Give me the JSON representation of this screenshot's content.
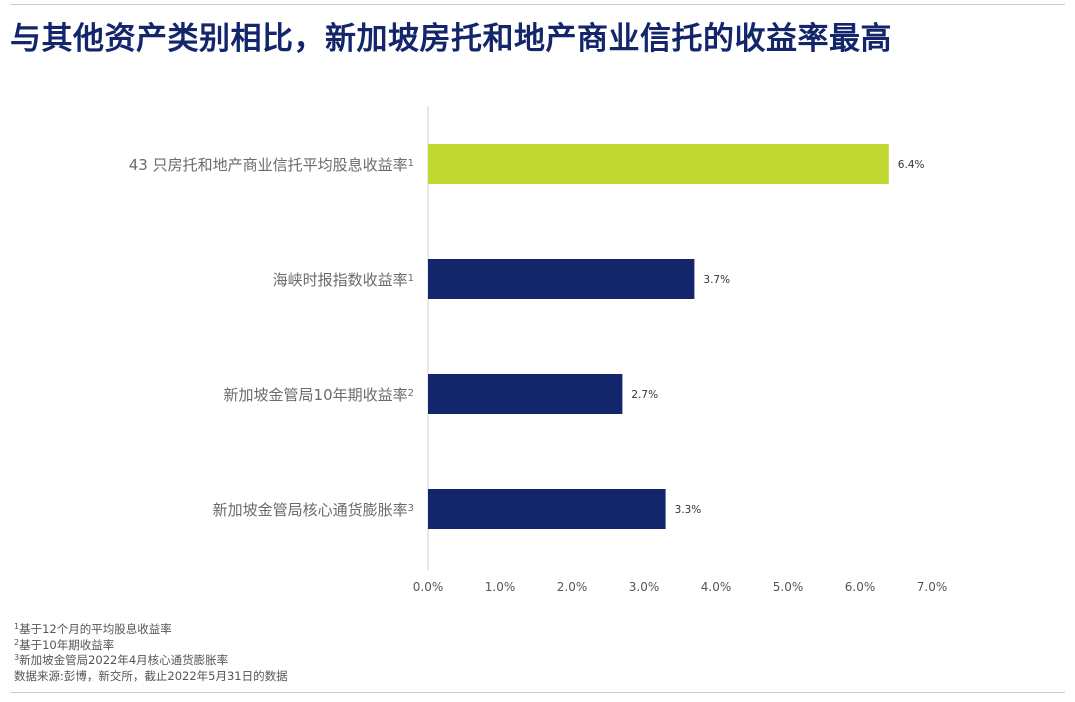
{
  "title": "与其他资产类别相比，新加坡房托和地产商业信托的收益率最高",
  "chart_data": {
    "type": "bar",
    "orientation": "horizontal",
    "categories": [
      {
        "label": "43 只房托和地产商业信托平均股息收益率",
        "sup": "1"
      },
      {
        "label": "海峡时报指数收益率",
        "sup": "1"
      },
      {
        "label": "新加坡金管局10年期收益率",
        "sup": "2"
      },
      {
        "label": "新加坡金管局核心通货膨胀率",
        "sup": "3"
      }
    ],
    "values": [
      6.4,
      3.7,
      2.7,
      3.3
    ],
    "value_labels": [
      "6.4%",
      "3.7%",
      "2.7%",
      "3.3%"
    ],
    "colors": [
      "#bfd730",
      "#14266b",
      "#14266b",
      "#14266b"
    ],
    "xlim": [
      0,
      7
    ],
    "xticks": [
      "0.0%",
      "1.0%",
      "2.0%",
      "3.0%",
      "4.0%",
      "5.0%",
      "6.0%",
      "7.0%"
    ],
    "xlabel": "",
    "ylabel": "",
    "grid": false,
    "legend": "none"
  },
  "footnotes": [
    {
      "sup": "1",
      "text": "基于12个月的平均股息收益率"
    },
    {
      "sup": "2",
      "text": "基于10年期收益率"
    },
    {
      "sup": "3",
      "text": "新加坡金管局2022年4月核心通货膨胀率"
    },
    {
      "sup": "",
      "text": "数据来源:彭博，新交所，截止2022年5月31日的数据"
    }
  ],
  "colors": {
    "title": "#14266b",
    "accent": "#bfd730",
    "bar": "#14266b"
  }
}
